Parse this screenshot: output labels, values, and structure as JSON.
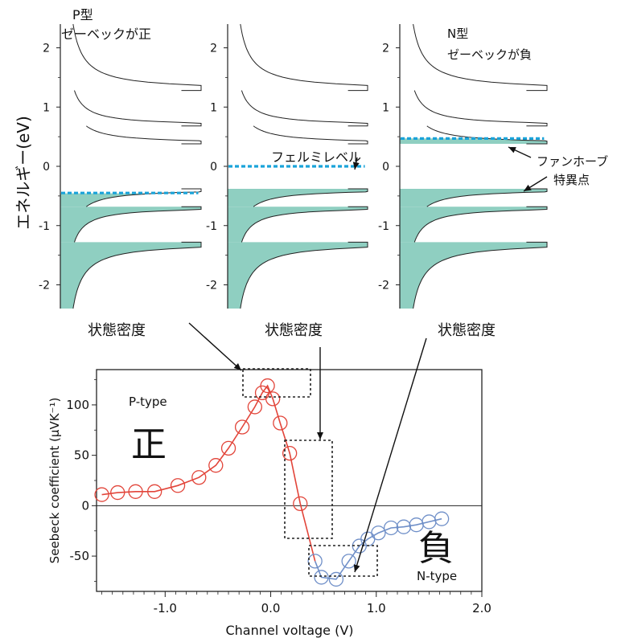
{
  "figure": {
    "energy_axis_label": "エネルギー(eV)",
    "dos_label": "状態密度",
    "fermi_label": "フェルミレベル",
    "vhs_label_line1": "ファンホーブ",
    "vhs_label_line2": "特異点",
    "positive_char": "正",
    "negative_char": "負"
  },
  "colors": {
    "fill": "#8fcfc1",
    "fermi": "#1aa3d9",
    "p_series": "#e2453a",
    "n_series": "#6f8fc8"
  },
  "dos_panels": [
    {
      "id": "p",
      "title_line1": "P型",
      "title_line2": "ゼーベックが正",
      "fermi_level": -0.45,
      "ylim": [
        -2.4,
        2.4
      ],
      "yticks": [
        2,
        1,
        0,
        -1,
        -2
      ]
    },
    {
      "id": "mid",
      "title_line1": "",
      "title_line2": "",
      "fermi_level": 0.0,
      "ylim": [
        -2.4,
        2.4
      ],
      "yticks": [
        2,
        1,
        0,
        -1,
        -2
      ]
    },
    {
      "id": "n",
      "title_line1": "N型",
      "title_line2": "ゼーベックが負",
      "fermi_level": 0.47,
      "ylim": [
        -2.4,
        2.4
      ],
      "yticks": [
        2,
        1,
        0,
        -1,
        -2
      ]
    }
  ],
  "dos_model": {
    "band_edges_upper": [
      0.38,
      0.68,
      1.28
    ],
    "band_edges_lower": [
      -0.38,
      -0.68,
      -1.28
    ],
    "continuum_upper": 2.4,
    "continuum_lower": -2.4
  },
  "chart_data": {
    "type": "scatter",
    "xlabel": "Channel voltage (V)",
    "ylabel": "Seebeck coefficient (μVK⁻¹)",
    "xlim": [
      -1.65,
      2.0
    ],
    "ylim": [
      -85,
      135
    ],
    "xticks": [
      -1.0,
      0.0,
      1.0,
      2.0
    ],
    "xtick_labels": [
      "-1.0",
      "0.0",
      "1.0",
      "2.0"
    ],
    "yticks": [
      100,
      50,
      0,
      -50
    ],
    "ytick_labels": [
      "100",
      "50",
      "0",
      "-50"
    ],
    "annotations": {
      "p_type": "P-type",
      "n_type": "N-type"
    },
    "series": [
      {
        "name": "P-type",
        "x": [
          -1.6,
          -1.45,
          -1.28,
          -1.1,
          -0.88,
          -0.68,
          -0.52,
          -0.4,
          -0.27,
          -0.15,
          -0.08,
          -0.03,
          0.02,
          0.09,
          0.18,
          0.28
        ],
        "y": [
          11,
          13,
          14,
          14,
          20,
          28,
          40,
          57,
          78,
          98,
          112,
          119,
          106,
          82,
          52,
          2
        ]
      },
      {
        "name": "N-type",
        "x": [
          0.42,
          0.48,
          0.62,
          0.74,
          0.84,
          0.92,
          1.02,
          1.14,
          1.26,
          1.38,
          1.5,
          1.62
        ],
        "y": [
          -55,
          -71,
          -73,
          -55,
          -40,
          -33,
          -27,
          -22,
          -21,
          -19,
          -16,
          -13
        ]
      }
    ]
  }
}
